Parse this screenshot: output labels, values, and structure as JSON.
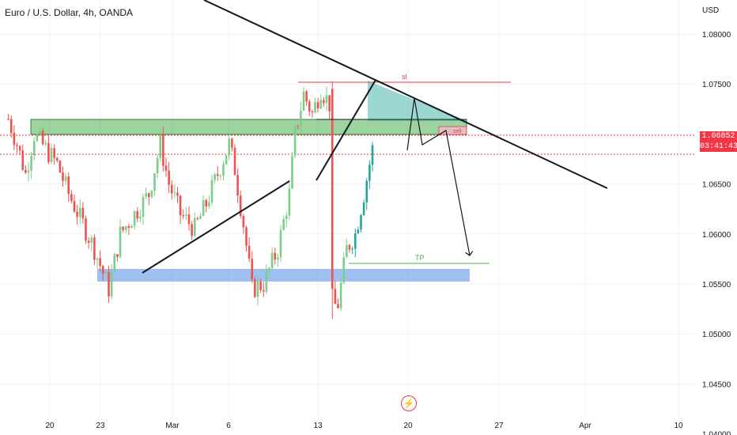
{
  "header": {
    "title": "Euro / U.S. Dollar, 4h, OANDA",
    "currency": "USD"
  },
  "price_tag": {
    "price": "1.06852",
    "countdown": "03:41:43",
    "color": "#f23645"
  },
  "logo_icon": "lightning-icon",
  "colors": {
    "bull": "#26a69a",
    "bull_light": "#7ccf8a",
    "bear": "#ef5350",
    "zone_green": "#4caf50",
    "zone_blue": "#4f8ee8",
    "trendline": "#131722"
  },
  "chart_data": {
    "type": "candlestick",
    "title": "Euro / U.S. Dollar, 4h, OANDA",
    "y_axis": {
      "ylim": [
        1.0375,
        1.0835
      ],
      "ticks": [
        "1.08000",
        "1.07500",
        "1.07000",
        "1.06500",
        "1.06000",
        "1.05500",
        "1.05000",
        "1.04500",
        "1.04000"
      ]
    },
    "x_axis": {
      "ticks": [
        "20",
        "23",
        "Mar",
        "6",
        "13",
        "20",
        "27",
        "Apr",
        "10"
      ]
    },
    "price_path": [
      {
        "t": 1,
        "p": 1.0715
      },
      {
        "t": 4,
        "p": 1.069
      },
      {
        "t": 7,
        "p": 1.066
      },
      {
        "t": 10,
        "p": 1.07
      },
      {
        "t": 14,
        "p": 1.0685
      },
      {
        "t": 18,
        "p": 1.067
      },
      {
        "t": 22,
        "p": 1.064
      },
      {
        "t": 27,
        "p": 1.061
      },
      {
        "t": 31,
        "p": 1.0585
      },
      {
        "t": 36,
        "p": 1.0545
      },
      {
        "t": 40,
        "p": 1.06
      },
      {
        "t": 45,
        "p": 1.062
      },
      {
        "t": 50,
        "p": 1.064
      },
      {
        "t": 54,
        "p": 1.069
      },
      {
        "t": 57,
        "p": 1.065
      },
      {
        "t": 61,
        "p": 1.062
      },
      {
        "t": 66,
        "p": 1.0605
      },
      {
        "t": 70,
        "p": 1.063
      },
      {
        "t": 74,
        "p": 1.066
      },
      {
        "t": 78,
        "p": 1.069
      },
      {
        "t": 80,
        "p": 1.0665
      },
      {
        "t": 83,
        "p": 1.061
      },
      {
        "t": 86,
        "p": 1.0545
      },
      {
        "t": 90,
        "p": 1.055
      },
      {
        "t": 95,
        "p": 1.0585
      },
      {
        "t": 99,
        "p": 1.064
      },
      {
        "t": 101,
        "p": 1.07
      },
      {
        "t": 104,
        "p": 1.074
      },
      {
        "t": 107,
        "p": 1.072
      },
      {
        "t": 110,
        "p": 1.0745
      },
      {
        "t": 113,
        "p": 1.073
      },
      {
        "t": 114,
        "p": 1.056
      },
      {
        "t": 116,
        "p": 1.053
      },
      {
        "t": 119,
        "p": 1.0585
      },
      {
        "t": 122,
        "p": 1.06
      },
      {
        "t": 125,
        "p": 1.064
      },
      {
        "t": 128,
        "p": 1.0685
      }
    ],
    "horizontal_lines": [
      {
        "name": "sl",
        "label": "sl",
        "price": 1.0745,
        "from_t": 94,
        "to_t": 163,
        "color": "#f23645"
      },
      {
        "name": "tp",
        "label": "TP",
        "price": 1.0542,
        "from_t": 111,
        "to_t": 156,
        "color": "#4caf50"
      },
      {
        "name": "current",
        "label": "",
        "price": 1.06852,
        "from_t": 0,
        "to_t": 226,
        "color": "#f23645",
        "style": "dotted"
      },
      {
        "name": "level",
        "label": "",
        "price": 1.0665,
        "from_t": 0,
        "to_t": 226,
        "color": "#f23645",
        "style": "dotted"
      }
    ],
    "sell_label": "sell",
    "zones": [
      {
        "name": "resistance-zone",
        "from_t": 9,
        "to_t": 150,
        "p_top": 1.0703,
        "p_bottom": 1.0688,
        "color": "#4caf50"
      },
      {
        "name": "support-zone",
        "from_t": 31,
        "to_t": 150,
        "p_top": 1.0532,
        "p_bottom": 1.0522,
        "color": "#4f8ee8"
      }
    ],
    "trendlines": [
      {
        "name": "descending-trendline",
        "from": {
          "t": 64,
          "p": 1.0865
        },
        "to": {
          "t": 195,
          "p": 1.0625
        }
      },
      {
        "name": "ascending-trendline-left",
        "from": {
          "t": 45,
          "p": 1.0532
        },
        "to": {
          "t": 93,
          "p": 1.0636
        }
      },
      {
        "name": "ascending-trendline-right",
        "from": {
          "t": 101,
          "p": 1.0637
        },
        "to": {
          "t": 121,
          "p": 1.0746
        }
      },
      {
        "name": "neckline",
        "from": {
          "t": 101,
          "p": 1.0701
        },
        "to": {
          "t": 148,
          "p": 1.0701
        }
      }
    ],
    "projection": [
      {
        "t": 131,
        "p": 1.073
      },
      {
        "t": 134,
        "p": 1.0675
      },
      {
        "t": 142,
        "p": 1.069
      },
      {
        "t": 150,
        "p": 1.0545
      }
    ]
  }
}
